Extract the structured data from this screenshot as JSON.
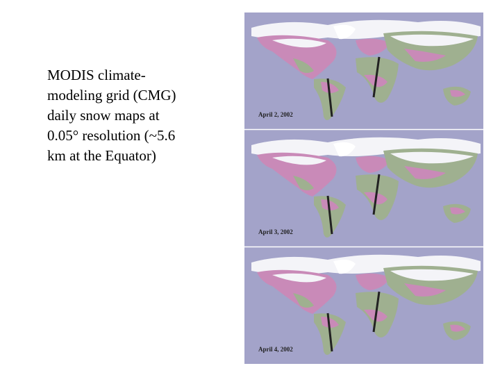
{
  "text_lines": [
    "MODIS climate-",
    "modeling grid (CMG)",
    "daily snow maps at",
    "0.05° resolution (~5.6",
    "km at the Equator)"
  ],
  "maps": [
    {
      "label": "April 2, 2002"
    },
    {
      "label": "April 3, 2002"
    },
    {
      "label": "April 4, 2002"
    }
  ]
}
